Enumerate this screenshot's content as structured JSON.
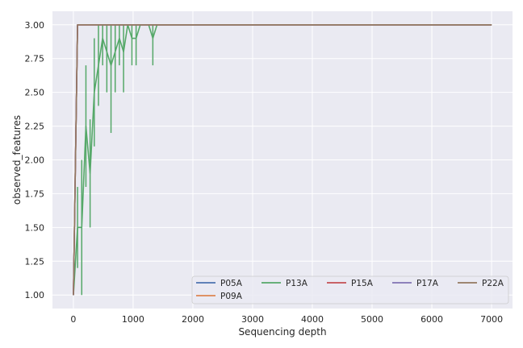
{
  "chart_data": {
    "type": "line",
    "xlabel": "Sequencing depth",
    "ylabel": "observed_features",
    "xlim": [
      -350,
      7350
    ],
    "ylim": [
      0.9,
      3.1
    ],
    "xticks": [
      0,
      1000,
      2000,
      3000,
      4000,
      5000,
      6000,
      7000
    ],
    "yticks": [
      1.0,
      1.25,
      1.5,
      1.75,
      2.0,
      2.25,
      2.5,
      2.75,
      3.0
    ],
    "ytick_labels": [
      "1.00",
      "1.25",
      "1.50",
      "1.75",
      "2.00",
      "2.25",
      "2.50",
      "2.75",
      "3.00"
    ],
    "grid": true,
    "style": "seaborn-darkgrid",
    "legend_position": "lower-right",
    "series": [
      {
        "name": "P05A",
        "color": "#4c72b0",
        "x": [
          1,
          70,
          7000
        ],
        "y": [
          1.0,
          3.0,
          3.0
        ],
        "err": []
      },
      {
        "name": "P09A",
        "color": "#dd8452",
        "x": [
          1,
          70,
          7000
        ],
        "y": [
          1.0,
          3.0,
          3.0
        ],
        "err": []
      },
      {
        "name": "P13A",
        "color": "#55a868",
        "x": [
          1,
          70,
          140,
          210,
          280,
          350,
          420,
          490,
          560,
          630,
          700,
          770,
          840,
          910,
          980,
          1050,
          1120,
          1190,
          1260,
          1330,
          1400,
          7000
        ],
        "y": [
          1.0,
          1.5,
          1.5,
          2.25,
          1.9,
          2.5,
          2.7,
          2.9,
          2.8,
          2.7,
          2.8,
          2.9,
          2.8,
          3.0,
          2.9,
          2.9,
          3.0,
          3.0,
          3.0,
          2.9,
          3.0,
          3.0
        ],
        "err": [
          {
            "x": 70,
            "low": 1.2,
            "high": 1.8
          },
          {
            "x": 140,
            "low": 1.0,
            "high": 2.0
          },
          {
            "x": 210,
            "low": 1.8,
            "high": 2.7
          },
          {
            "x": 280,
            "low": 1.5,
            "high": 2.3
          },
          {
            "x": 350,
            "low": 2.1,
            "high": 2.9
          },
          {
            "x": 420,
            "low": 2.4,
            "high": 3.0
          },
          {
            "x": 490,
            "low": 2.7,
            "high": 3.0
          },
          {
            "x": 560,
            "low": 2.5,
            "high": 3.0
          },
          {
            "x": 630,
            "low": 2.2,
            "high": 3.0
          },
          {
            "x": 700,
            "low": 2.5,
            "high": 3.0
          },
          {
            "x": 770,
            "low": 2.7,
            "high": 3.0
          },
          {
            "x": 840,
            "low": 2.5,
            "high": 3.0
          },
          {
            "x": 980,
            "low": 2.7,
            "high": 3.0
          },
          {
            "x": 1050,
            "low": 2.7,
            "high": 3.0
          },
          {
            "x": 1330,
            "low": 2.7,
            "high": 3.0
          }
        ]
      },
      {
        "name": "P15A",
        "color": "#c44e52",
        "x": [
          1,
          70,
          7000
        ],
        "y": [
          1.0,
          3.0,
          3.0
        ],
        "err": []
      },
      {
        "name": "P17A",
        "color": "#8172b3",
        "x": [
          1,
          70,
          7000
        ],
        "y": [
          1.0,
          3.0,
          3.0
        ],
        "err": []
      },
      {
        "name": "P22A",
        "color": "#937860",
        "x": [
          1,
          70,
          7000
        ],
        "y": [
          1.0,
          3.0,
          3.0
        ],
        "err": []
      }
    ]
  }
}
